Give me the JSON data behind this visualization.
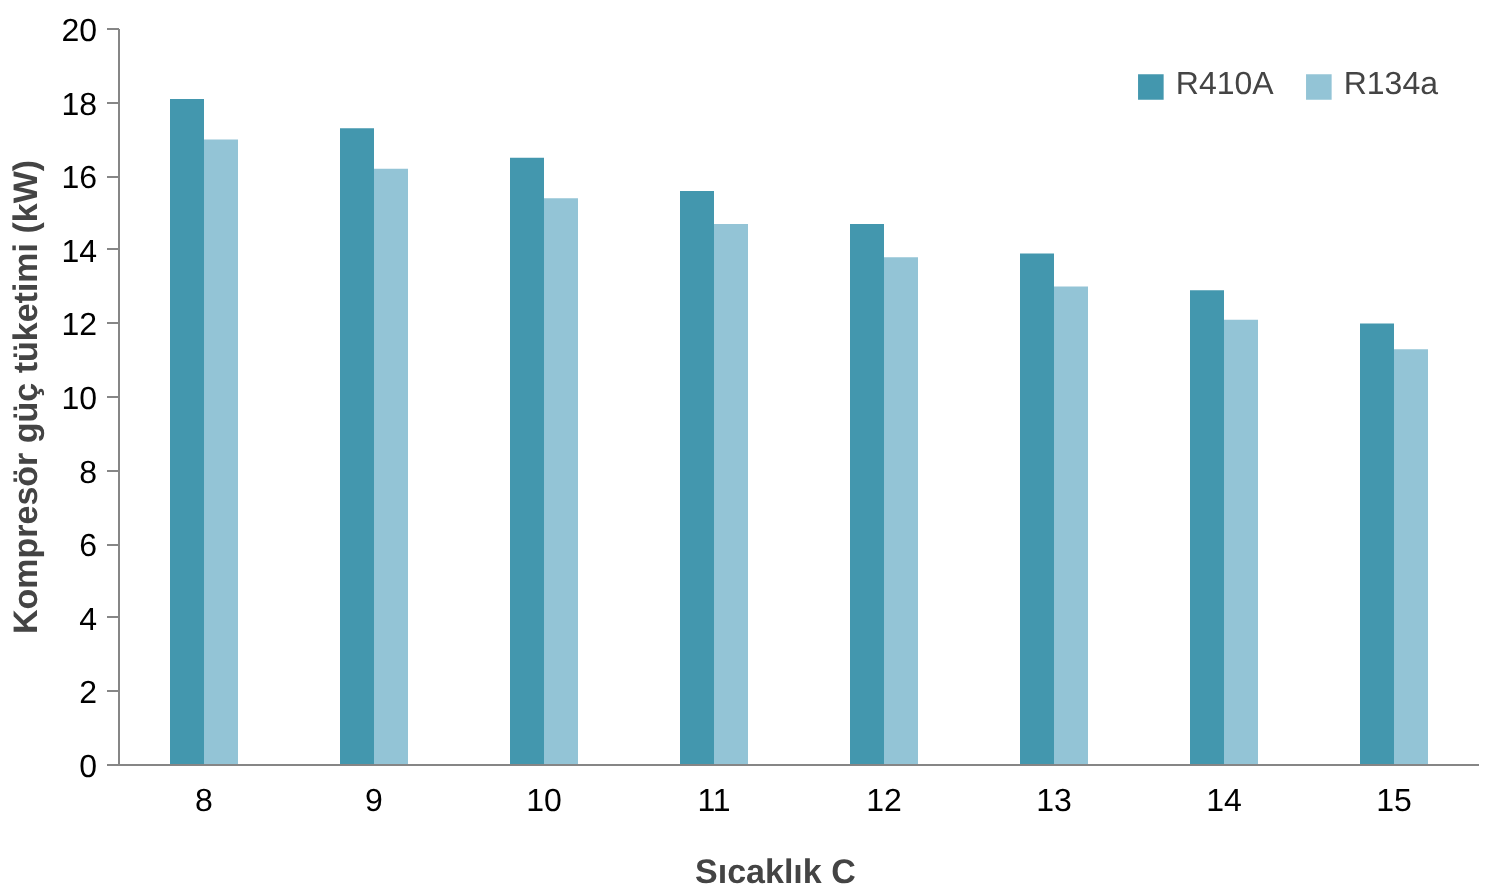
{
  "chart_data": {
    "type": "bar",
    "xlabel": "Sıcaklık      C",
    "ylabel": "Kompresör güç tüketimi (kW)",
    "categories": [
      "8",
      "9",
      "10",
      "11",
      "12",
      "13",
      "14",
      "15"
    ],
    "series": [
      {
        "name": "R410A",
        "color": "#4397ae",
        "values": [
          18.1,
          17.3,
          16.5,
          15.6,
          14.7,
          13.9,
          12.9,
          12.0
        ]
      },
      {
        "name": "R134a",
        "color": "#93c4d6",
        "values": [
          17.0,
          16.2,
          15.4,
          14.7,
          13.8,
          13.0,
          12.1,
          11.3
        ]
      }
    ],
    "ylim": [
      0,
      20
    ],
    "yticks": [
      0,
      2,
      4,
      6,
      8,
      10,
      12,
      14,
      16,
      18,
      20
    ],
    "grid": false,
    "legend": "top right"
  }
}
